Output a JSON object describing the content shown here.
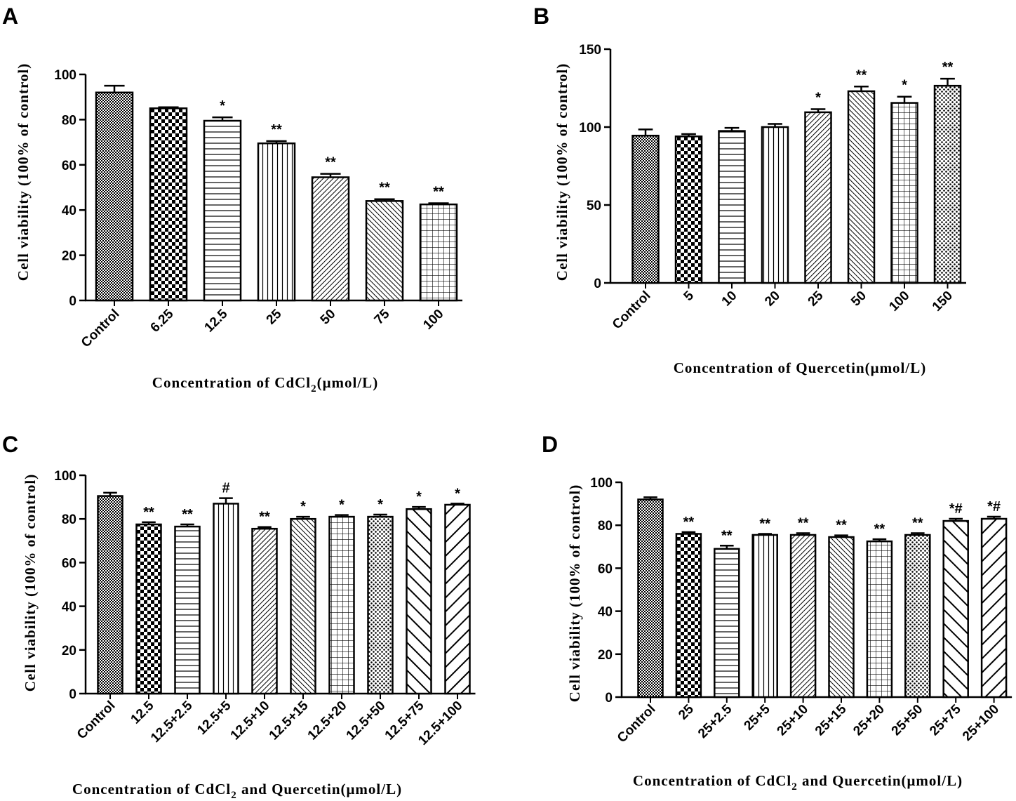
{
  "chart_data": [
    {
      "type": "bar",
      "panel": "A",
      "categories": [
        "Control",
        "6.25",
        "12.5",
        "25",
        "50",
        "75",
        "100"
      ],
      "values": [
        92,
        85,
        79.5,
        69.5,
        54.5,
        44,
        42.5
      ],
      "errors": [
        3,
        0.5,
        1.5,
        1,
        1.5,
        0.8,
        0.5
      ],
      "significance": [
        "",
        "",
        "*",
        "**",
        "**",
        "**",
        "**"
      ],
      "patterns": [
        "fine",
        "check",
        "hlines",
        "vlines",
        "diag",
        "diag2",
        "grid"
      ],
      "ylabel": "Cell viability (100% of control)",
      "xlabel_main": "Concentration of CdCl",
      "xlabel_sub": "2",
      "xlabel_tail": "(μmol/L)",
      "ylim": [
        0,
        100
      ],
      "yticks": [
        0,
        20,
        40,
        60,
        80,
        100
      ]
    },
    {
      "type": "bar",
      "panel": "B",
      "categories": [
        "Control",
        "5",
        "10",
        "20",
        "25",
        "50",
        "100",
        "150"
      ],
      "values": [
        94.5,
        94,
        97.5,
        100,
        109.5,
        123,
        115.5,
        126.5
      ],
      "errors": [
        4,
        1.5,
        2,
        2,
        2,
        3,
        4,
        4.5
      ],
      "significance": [
        "",
        "",
        "",
        "",
        "*",
        "**",
        "*",
        "**"
      ],
      "patterns": [
        "fine",
        "check",
        "hlines",
        "vlines",
        "diag",
        "diag2",
        "grid",
        "fine2"
      ],
      "ylabel": "Cell viability (100% of control)",
      "xlabel_main": "Concentration of Quercetin(μmol/L)",
      "xlabel_sub": "",
      "xlabel_tail": "",
      "ylim": [
        0,
        150
      ],
      "yticks": [
        0,
        50,
        100,
        150
      ]
    },
    {
      "type": "bar",
      "panel": "C",
      "categories": [
        "Control",
        "12.5",
        "12.5+2.5",
        "12.5+5",
        "12.5+10",
        "12.5+15",
        "12.5+20",
        "12.5+50",
        "12.5+75",
        "12.5+100"
      ],
      "values": [
        90.5,
        77.5,
        76.5,
        87,
        75.5,
        80,
        81,
        81,
        84.5,
        86.5
      ],
      "errors": [
        1.5,
        1,
        1,
        2.5,
        0.8,
        1,
        0.8,
        1,
        1,
        0.5
      ],
      "significance": [
        "",
        "**",
        "**",
        "#",
        "**",
        "*",
        "*",
        "*",
        "*",
        "*"
      ],
      "patterns": [
        "fine",
        "check",
        "hlines",
        "vlines",
        "diag",
        "diag2",
        "grid",
        "fine2",
        "bigdiag",
        "bigdiag2"
      ],
      "ylabel": "Cell viability (100% of control)",
      "xlabel_main": "Concentration of CdCl",
      "xlabel_sub": "2",
      "xlabel_tail": " and Quercetin(μmol/L)",
      "ylim": [
        0,
        100
      ],
      "yticks": [
        0,
        20,
        40,
        60,
        80,
        100
      ]
    },
    {
      "type": "bar",
      "panel": "D",
      "categories": [
        "Control",
        "25",
        "25+2.5",
        "25+5",
        "25+10",
        "25+15",
        "25+20",
        "25+50",
        "25+75",
        "25+100"
      ],
      "values": [
        92,
        76,
        69,
        75.5,
        75.5,
        74.5,
        72.5,
        75.5,
        82,
        83
      ],
      "errors": [
        1,
        0.8,
        1.5,
        0.5,
        0.8,
        0.8,
        1,
        0.8,
        1,
        1
      ],
      "significance": [
        "",
        "**",
        "**",
        "**",
        "**",
        "**",
        "**",
        "**",
        "*#",
        "*#"
      ],
      "patterns": [
        "fine",
        "check",
        "hlines",
        "vlines",
        "diag",
        "diag2",
        "grid",
        "fine2",
        "bigdiag",
        "bigdiag2"
      ],
      "ylabel": "Cell viability (100% of control)",
      "xlabel_main": "Concentration of CdCl",
      "xlabel_sub": "2",
      "xlabel_tail": " and Quercetin(μmol/L)",
      "ylim": [
        0,
        100
      ],
      "yticks": [
        0,
        20,
        40,
        60,
        80,
        100
      ]
    }
  ]
}
